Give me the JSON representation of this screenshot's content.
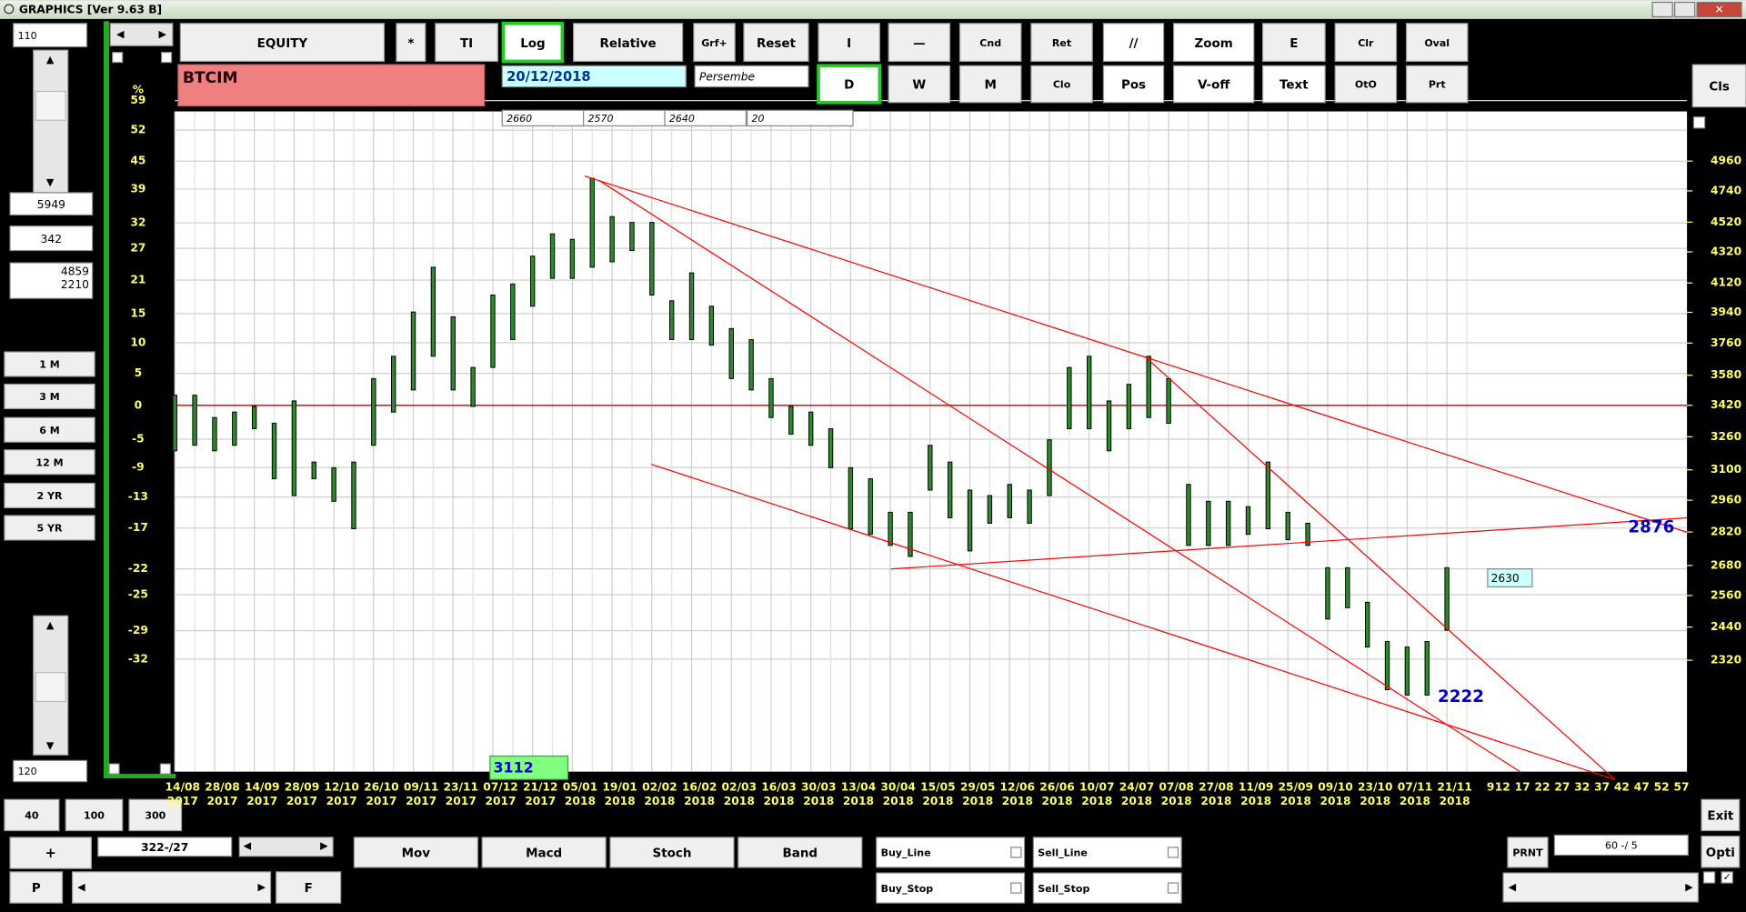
{
  "window": {
    "title": "GRAPHICS  [Ver 9.63 B]"
  },
  "left_panel": {
    "top_field": "110",
    "field1": "5949",
    "field2": "342",
    "field3": [
      "4859",
      "2210"
    ],
    "periods": [
      "1 M",
      "3 M",
      "6 M",
      "12 M",
      "2 YR",
      "5 YR"
    ],
    "bottom_field": "120"
  },
  "toolbar": {
    "row1": [
      "EQUITY",
      "*",
      "TI",
      "Log",
      "Relative",
      "Grf+",
      "Reset",
      "I",
      "—",
      "Cnd",
      "Ret",
      "//",
      "Zoom",
      "E",
      "Clr",
      "Oval"
    ],
    "row2": [
      "D",
      "W",
      "M",
      "Clo",
      "Pos",
      "V-off",
      "Text",
      "OtO",
      "Prt"
    ],
    "cls": "Cls"
  },
  "symbol": "BTCIM",
  "date": "20/12/2018",
  "day": "Persembe",
  "small_fields": [
    "2660",
    "2570",
    "2640",
    "20"
  ],
  "chart_data": {
    "type": "hilo",
    "log": true,
    "grid": true,
    "bar_color": "#2f8a2f",
    "line_color": "#ff0000",
    "label_color": "#0000cc",
    "x_labels": [
      {
        "day": "14/08",
        "year": "2017"
      },
      {
        "day": "28/08",
        "year": "2017"
      },
      {
        "day": "14/09",
        "year": "2017"
      },
      {
        "day": "28/09",
        "year": "2017"
      },
      {
        "day": "12/10",
        "year": "2017"
      },
      {
        "day": "26/10",
        "year": "2017"
      },
      {
        "day": "09/11",
        "year": "2017"
      },
      {
        "day": "23/11",
        "year": "2017"
      },
      {
        "day": "07/12",
        "year": "2017"
      },
      {
        "day": "21/12",
        "year": "2017"
      },
      {
        "day": "05/01",
        "year": "2018"
      },
      {
        "day": "19/01",
        "year": "2018"
      },
      {
        "day": "02/02",
        "year": "2018"
      },
      {
        "day": "16/02",
        "year": "2018"
      },
      {
        "day": "02/03",
        "year": "2018"
      },
      {
        "day": "16/03",
        "year": "2018"
      },
      {
        "day": "30/03",
        "year": "2018"
      },
      {
        "day": "13/04",
        "year": "2018"
      },
      {
        "day": "30/04",
        "year": "2018"
      },
      {
        "day": "15/05",
        "year": "2018"
      },
      {
        "day": "29/05",
        "year": "2018"
      },
      {
        "day": "12/06",
        "year": "2018"
      },
      {
        "day": "26/06",
        "year": "2018"
      },
      {
        "day": "10/07",
        "year": "2018"
      },
      {
        "day": "24/07",
        "year": "2018"
      },
      {
        "day": "07/08",
        "year": "2018"
      },
      {
        "day": "27/08",
        "year": "2018"
      },
      {
        "day": "11/09",
        "year": "2018"
      },
      {
        "day": "25/09",
        "year": "2018"
      },
      {
        "day": "09/10",
        "year": "2018"
      },
      {
        "day": "23/10",
        "year": "2018"
      },
      {
        "day": "07/11",
        "year": "2018"
      },
      {
        "day": "21/11",
        "year": "2018"
      }
    ],
    "future_ticks": [
      9,
      12,
      17,
      22,
      27,
      32,
      37,
      42,
      47,
      52,
      57
    ],
    "high": [
      3473,
      3473,
      3357,
      3385,
      3414,
      3328,
      3443,
      3137,
      3110,
      3137,
      3562,
      3685,
      3942,
      4220,
      3913,
      3623,
      4045,
      4114,
      4292,
      4440,
      4403,
      4832,
      4558,
      4518,
      4518,
      4010,
      4184,
      3977,
      3844,
      3780,
      3562,
      3414,
      3385,
      3300,
      3110,
      3058,
      2906,
      2906,
      3218,
      3137,
      3006,
      2981,
      3032,
      3006,
      3245,
      3623,
      3685,
      3443,
      3531,
      3685,
      3562,
      3032,
      2955,
      2955,
      2931,
      3137,
      2906,
      2858,
      2671,
      2671,
      2534,
      2387,
      2367,
      2387,
      2671
    ],
    "low": [
      3191,
      3218,
      3191,
      3218,
      3300,
      3058,
      2981,
      3058,
      2955,
      2834,
      3218,
      3385,
      3501,
      3685,
      3501,
      3414,
      3623,
      3780,
      3977,
      4149,
      4149,
      4220,
      4255,
      4329,
      4045,
      3780,
      3780,
      3748,
      3562,
      3501,
      3357,
      3273,
      3218,
      3110,
      2834,
      2810,
      2763,
      2717,
      3006,
      2882,
      2740,
      2858,
      2882,
      2858,
      2981,
      3300,
      3300,
      3191,
      3300,
      3357,
      3328,
      2763,
      2763,
      2763,
      2810,
      2834,
      2787,
      2763,
      2470,
      2513,
      2367,
      2218,
      2200,
      2200,
      2428
    ],
    "ylim": [
      1958,
      5350
    ],
    "yticks": [
      4960,
      4740,
      4520,
      4320,
      4120,
      3940,
      3760,
      3580,
      3420,
      3260,
      3100,
      2960,
      2820,
      2680,
      2560,
      2440,
      2320
    ],
    "y2_label": "%",
    "y2lim": [
      -42.7,
      56.4
    ],
    "y2ticks": [
      59,
      52,
      45,
      39,
      32,
      27,
      21,
      15,
      10,
      5,
      0,
      -5,
      -9,
      -13,
      -17,
      -22,
      -25,
      -29,
      -32
    ],
    "reference_line": 3420,
    "price_labels": [
      2876,
      2222
    ],
    "cursor_label": 2630,
    "marker_label": 3112
  },
  "bottom": {
    "zoom": [
      "40",
      "100",
      "300"
    ],
    "plus": "+",
    "range": "322-/27",
    "p": "P",
    "f": "F",
    "indicators": [
      "Mov",
      "Macd",
      "Stoch",
      "Band"
    ],
    "orders": [
      "Buy_Line",
      "Sell_Line",
      "Buy_Stop",
      "Sell_Stop"
    ],
    "prnt": "PRNT",
    "ratio": "60 -/ 5",
    "exit": "Exit",
    "opti": "Opti"
  }
}
